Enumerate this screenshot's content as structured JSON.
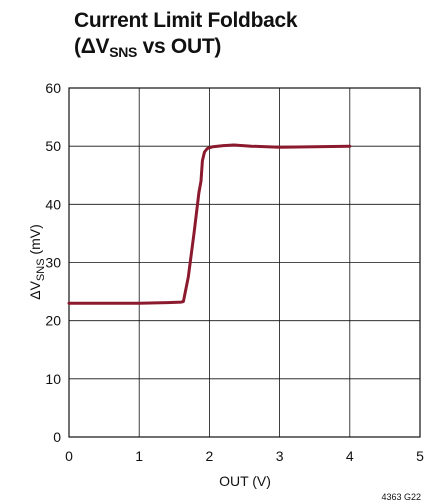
{
  "chart_data": {
    "type": "line",
    "title_line1": "Current Limit Foldback",
    "title_line2_prefix": "(ΔV",
    "title_line2_sub": "SNS",
    "title_line2_suffix": " vs OUT)",
    "xlabel": "OUT (V)",
    "ylabel_prefix": "ΔV",
    "ylabel_sub": "SNS",
    "ylabel_suffix": " (mV)",
    "xlim": [
      0,
      5
    ],
    "ylim": [
      0,
      60
    ],
    "xticks": [
      "0",
      "1",
      "2",
      "3",
      "4",
      "5"
    ],
    "yticks": [
      "0",
      "10",
      "20",
      "30",
      "40",
      "50",
      "60"
    ],
    "grid": true,
    "figure_id": "4363 G22",
    "line_color": "#8b1a2e",
    "series": [
      {
        "x": [
          0,
          0.5,
          1.0,
          1.4,
          1.6,
          1.63,
          1.7,
          1.78,
          1.85,
          1.88,
          1.9,
          1.93,
          1.97,
          2.05,
          2.2,
          2.35,
          2.6,
          3.0,
          3.5,
          4.0
        ],
        "values": [
          23.0,
          23.0,
          23.0,
          23.1,
          23.2,
          23.3,
          27.5,
          35.0,
          42.0,
          44.0,
          47.5,
          49.0,
          49.6,
          49.9,
          50.1,
          50.2,
          50.0,
          49.8,
          49.9,
          50.0
        ]
      }
    ]
  }
}
